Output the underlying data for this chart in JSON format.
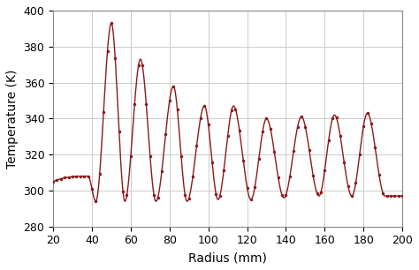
{
  "xlabel": "Radius (mm)",
  "ylabel": "Temperature (K)",
  "xlim": [
    20,
    200
  ],
  "ylim": [
    280,
    400
  ],
  "xticks": [
    20,
    40,
    60,
    80,
    100,
    120,
    140,
    160,
    180,
    200
  ],
  "yticks": [
    280,
    300,
    320,
    340,
    360,
    380,
    400
  ],
  "line_color": "#8B1A1A",
  "marker_color": "#8B1A1A",
  "grid_color": "#cccccc",
  "bg_color": "#ffffff",
  "figsize": [
    4.74,
    3.06
  ],
  "dpi": 100,
  "keypoints_r": [
    20,
    38,
    42,
    50,
    57,
    65,
    73,
    82,
    89,
    98,
    105,
    113,
    122,
    130,
    139,
    148,
    157,
    165,
    174,
    182,
    191,
    200
  ],
  "keypoints_t": [
    305,
    308,
    294,
    393,
    294,
    373,
    294,
    358,
    294,
    347,
    295,
    347,
    295,
    340,
    296,
    341,
    297,
    342,
    297,
    343,
    297,
    297
  ]
}
